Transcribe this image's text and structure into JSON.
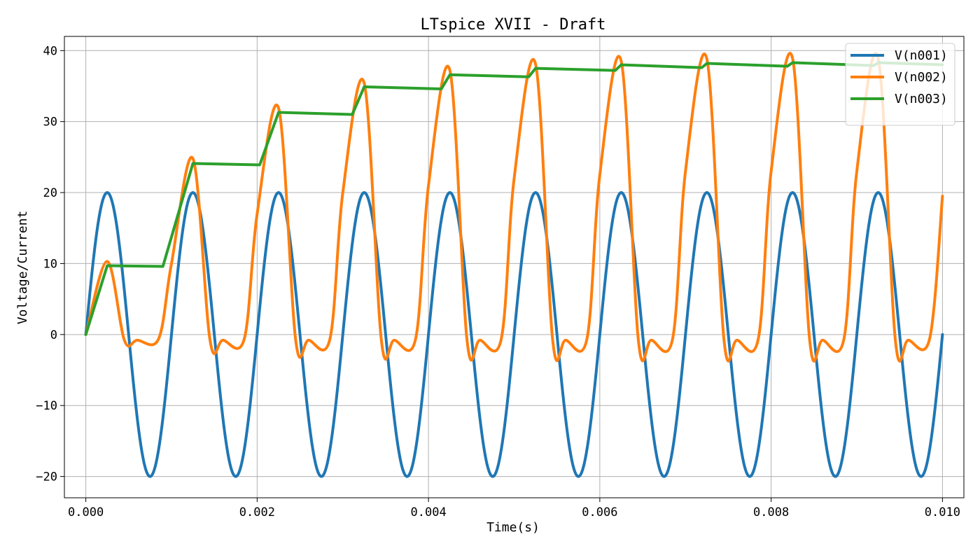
{
  "window": {
    "title": "LTspice XVII - Draft"
  },
  "chart_data": {
    "type": "line",
    "title": "LTspice XVII - Draft",
    "xlabel": "Time(s)",
    "ylabel": "Voltage/Current",
    "xlim": [
      -0.00025,
      0.01025
    ],
    "ylim": [
      -23.0,
      42.0
    ],
    "x_ticks": [
      0.0,
      0.002,
      0.004,
      0.006,
      0.008,
      0.01
    ],
    "x_tick_labels": [
      "0.000",
      "0.002",
      "0.004",
      "0.006",
      "0.008",
      "0.010"
    ],
    "y_ticks": [
      -20,
      -10,
      0,
      10,
      20,
      30,
      40
    ],
    "y_tick_labels": [
      "−20",
      "−10",
      "0",
      "10",
      "20",
      "30",
      "40"
    ],
    "grid": true,
    "legend_position": "top-right",
    "series": [
      {
        "name": "V(n001)",
        "color": "#1f77b4",
        "description": "sinusoid, amplitude 20, frequency 1000 Hz",
        "x": [
          0.0,
          0.00025,
          0.0005,
          0.00075,
          0.001,
          0.00125,
          0.0015,
          0.00175,
          0.002,
          0.00225,
          0.0025,
          0.00275,
          0.003,
          0.00325,
          0.0035,
          0.00375,
          0.004,
          0.00425,
          0.0045,
          0.00475,
          0.005,
          0.00525,
          0.0055,
          0.00575,
          0.006,
          0.00625,
          0.0065,
          0.00675,
          0.007,
          0.00725,
          0.0075,
          0.00775,
          0.008,
          0.00825,
          0.0085,
          0.00875,
          0.009,
          0.00925,
          0.0095,
          0.00975,
          0.01
        ],
        "y": [
          0,
          20,
          0,
          -20,
          0,
          20,
          0,
          -20,
          0,
          20,
          0,
          -20,
          0,
          20,
          0,
          -20,
          0,
          20,
          0,
          -20,
          0,
          20,
          0,
          -20,
          0,
          20,
          0,
          -20,
          0,
          20,
          0,
          -20,
          0,
          20,
          0,
          -20,
          0,
          20,
          0,
          -20,
          0
        ]
      },
      {
        "name": "V(n002)",
        "color": "#ff7f0e",
        "x": [
          0.0,
          0.00025,
          0.00045,
          0.0006,
          0.00085,
          0.001,
          0.00125,
          0.00145,
          0.0016,
          0.00185,
          0.002,
          0.00225,
          0.00245,
          0.0026,
          0.00285,
          0.003,
          0.00325,
          0.00345,
          0.0036,
          0.00385,
          0.004,
          0.00425,
          0.00445,
          0.0046,
          0.00485,
          0.005,
          0.00525,
          0.00545,
          0.0056,
          0.00585,
          0.006,
          0.00625,
          0.00645,
          0.0066,
          0.00685,
          0.007,
          0.00725,
          0.00745,
          0.0076,
          0.00785,
          0.008,
          0.00825,
          0.00845,
          0.0086,
          0.00885,
          0.009,
          0.00925,
          0.00945,
          0.0096,
          0.00985,
          0.01
        ],
        "y": [
          0,
          10.3,
          -0.8,
          -0.8,
          -0.6,
          10,
          24.8,
          -0.8,
          -0.8,
          -0.6,
          17,
          31.9,
          -0.8,
          -0.8,
          -0.6,
          20,
          35.4,
          -0.8,
          -0.8,
          -0.6,
          21,
          37.2,
          -0.8,
          -0.8,
          -0.6,
          22,
          38.1,
          -0.8,
          -0.8,
          -0.6,
          22.5,
          38.5,
          -0.8,
          -0.8,
          -0.6,
          23,
          38.8,
          -0.8,
          -0.8,
          -0.6,
          23,
          38.9,
          -0.8,
          -0.8,
          -0.6,
          23,
          38.9,
          -0.8,
          -0.8,
          -0.6,
          19.5
        ]
      },
      {
        "name": "V(n003)",
        "color": "#2ca02c",
        "x": [
          0.0,
          0.00025,
          0.0009,
          0.00125,
          0.00203,
          0.00225,
          0.00311,
          0.00325,
          0.00415,
          0.00425,
          0.00517,
          0.00525,
          0.00618,
          0.00625,
          0.00719,
          0.00725,
          0.00819,
          0.00825,
          0.0092,
          0.00925,
          0.01
        ],
        "y": [
          0,
          9.7,
          9.6,
          24.1,
          23.9,
          31.3,
          31.0,
          34.9,
          34.6,
          36.6,
          36.3,
          37.5,
          37.2,
          38.0,
          37.6,
          38.2,
          37.8,
          38.3,
          37.9,
          38.3,
          38.0
        ]
      }
    ]
  }
}
